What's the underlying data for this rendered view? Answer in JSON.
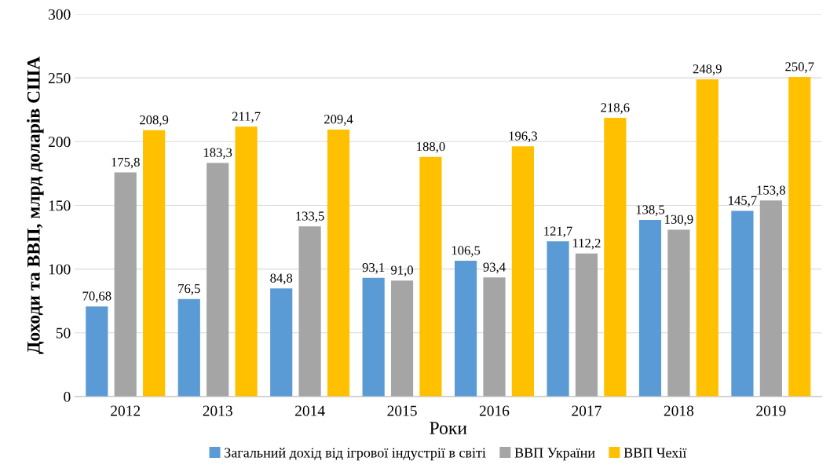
{
  "chart_data": {
    "type": "bar",
    "xlabel": "Роки",
    "ylabel": "Доходи та ВВП, млрд доларів США",
    "categories": [
      "2012",
      "2013",
      "2014",
      "2015",
      "2016",
      "2017",
      "2018",
      "2019"
    ],
    "series": [
      {
        "name": "Загальний дохід від ігрової індустрії в світі",
        "color": "#5b9bd5",
        "values": [
          70.68,
          76.5,
          84.8,
          93.1,
          106.5,
          121.7,
          138.5,
          145.7
        ],
        "value_labels": [
          "70,68",
          "76,5",
          "84,8",
          "93,1",
          "106,5",
          "121,7",
          "138,5",
          "145,7"
        ]
      },
      {
        "name": "ВВП України",
        "color": "#a5a5a5",
        "values": [
          175.8,
          183.3,
          133.5,
          91.0,
          93.4,
          112.2,
          130.9,
          153.8
        ],
        "value_labels": [
          "175,8",
          "183,3",
          "133,5",
          "91,0",
          "93,4",
          "112,2",
          "130,9",
          "153,8"
        ]
      },
      {
        "name": "ВВП Чехії",
        "color": "#ffc000",
        "values": [
          208.9,
          211.7,
          209.4,
          188.0,
          196.3,
          218.6,
          248.9,
          250.7
        ],
        "value_labels": [
          "208,9",
          "211,7",
          "209,4",
          "188,0",
          "196,3",
          "218,6",
          "248,9",
          "250,7"
        ]
      }
    ],
    "ylim": [
      0,
      300
    ],
    "yticks": [
      0,
      50,
      100,
      150,
      200,
      250,
      300
    ],
    "grid": "y",
    "legend": "bottom"
  }
}
